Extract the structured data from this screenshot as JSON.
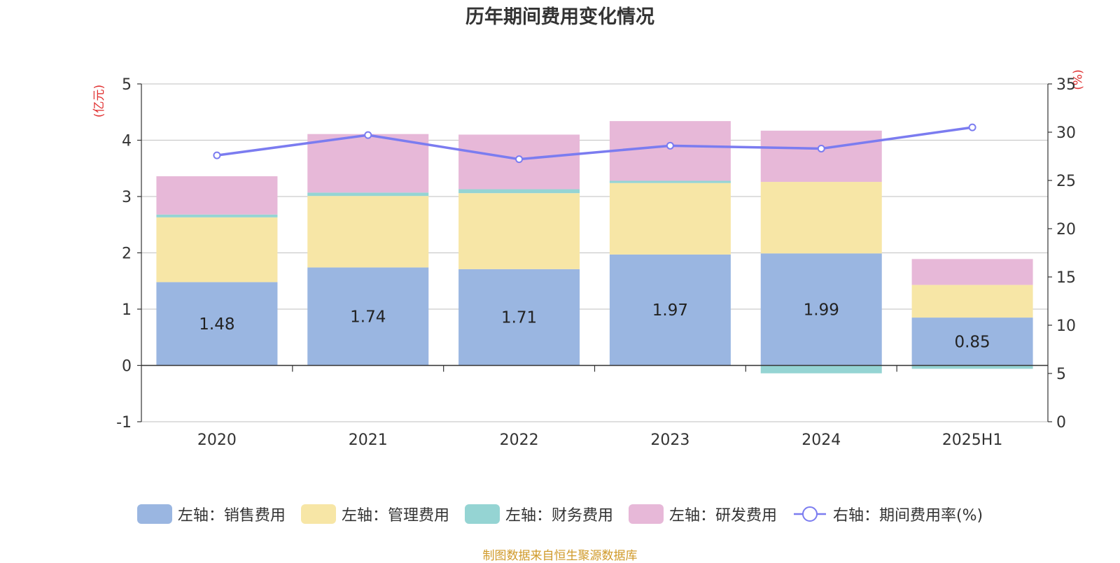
{
  "chart_data": {
    "type": "bar",
    "title": "历年期间费用变化情况",
    "categories": [
      "2020",
      "2021",
      "2022",
      "2023",
      "2024",
      "2025H1"
    ],
    "left_axis": {
      "unit": "(亿元)",
      "ylim": [
        -1,
        5
      ],
      "ticks": [
        5,
        4,
        3,
        2,
        1,
        0,
        -1
      ]
    },
    "right_axis": {
      "unit": "(%)",
      "ylim": [
        0,
        35
      ],
      "ticks": [
        35,
        30,
        25,
        20,
        15,
        10,
        5,
        0
      ]
    },
    "series": [
      {
        "name": "左轴：销售费用",
        "kind": "stacked-bar",
        "color": "#9ab6e1",
        "values": [
          1.48,
          1.74,
          1.71,
          1.97,
          1.99,
          0.85
        ],
        "labels_shown": true
      },
      {
        "name": "左轴：管理费用",
        "kind": "stacked-bar",
        "color": "#f7e6a6",
        "values": [
          1.15,
          1.27,
          1.35,
          1.27,
          1.27,
          0.58
        ],
        "labels_shown": false
      },
      {
        "name": "左轴：财务费用",
        "kind": "stacked-bar",
        "color": "#95d4d3",
        "values": [
          0.05,
          0.06,
          0.07,
          0.04,
          -0.14,
          -0.06
        ],
        "labels_shown": false
      },
      {
        "name": "左轴：研发费用",
        "kind": "stacked-bar",
        "color": "#e7b8d8",
        "values": [
          0.68,
          1.04,
          0.97,
          1.06,
          0.91,
          0.46
        ],
        "labels_shown": false
      },
      {
        "name": "右轴：期间费用率(%)",
        "kind": "line",
        "axis": "right",
        "color": "#7b7cf0",
        "values": [
          27.6,
          29.7,
          27.2,
          28.6,
          28.3,
          30.5
        ]
      }
    ],
    "grid": true,
    "legend_position": "bottom"
  },
  "legend": [
    {
      "label": "左轴：销售费用",
      "color": "#9ab6e1",
      "type": "box"
    },
    {
      "label": "左轴：管理费用",
      "color": "#f7e6a6",
      "type": "box"
    },
    {
      "label": "左轴：财务费用",
      "color": "#95d4d3",
      "type": "box"
    },
    {
      "label": "左轴：研发费用",
      "color": "#e7b8d8",
      "type": "box"
    },
    {
      "label": "右轴：期间费用率(%)",
      "color": "#7b7cf0",
      "type": "line"
    }
  ],
  "footer": "制图数据来自恒生聚源数据库"
}
